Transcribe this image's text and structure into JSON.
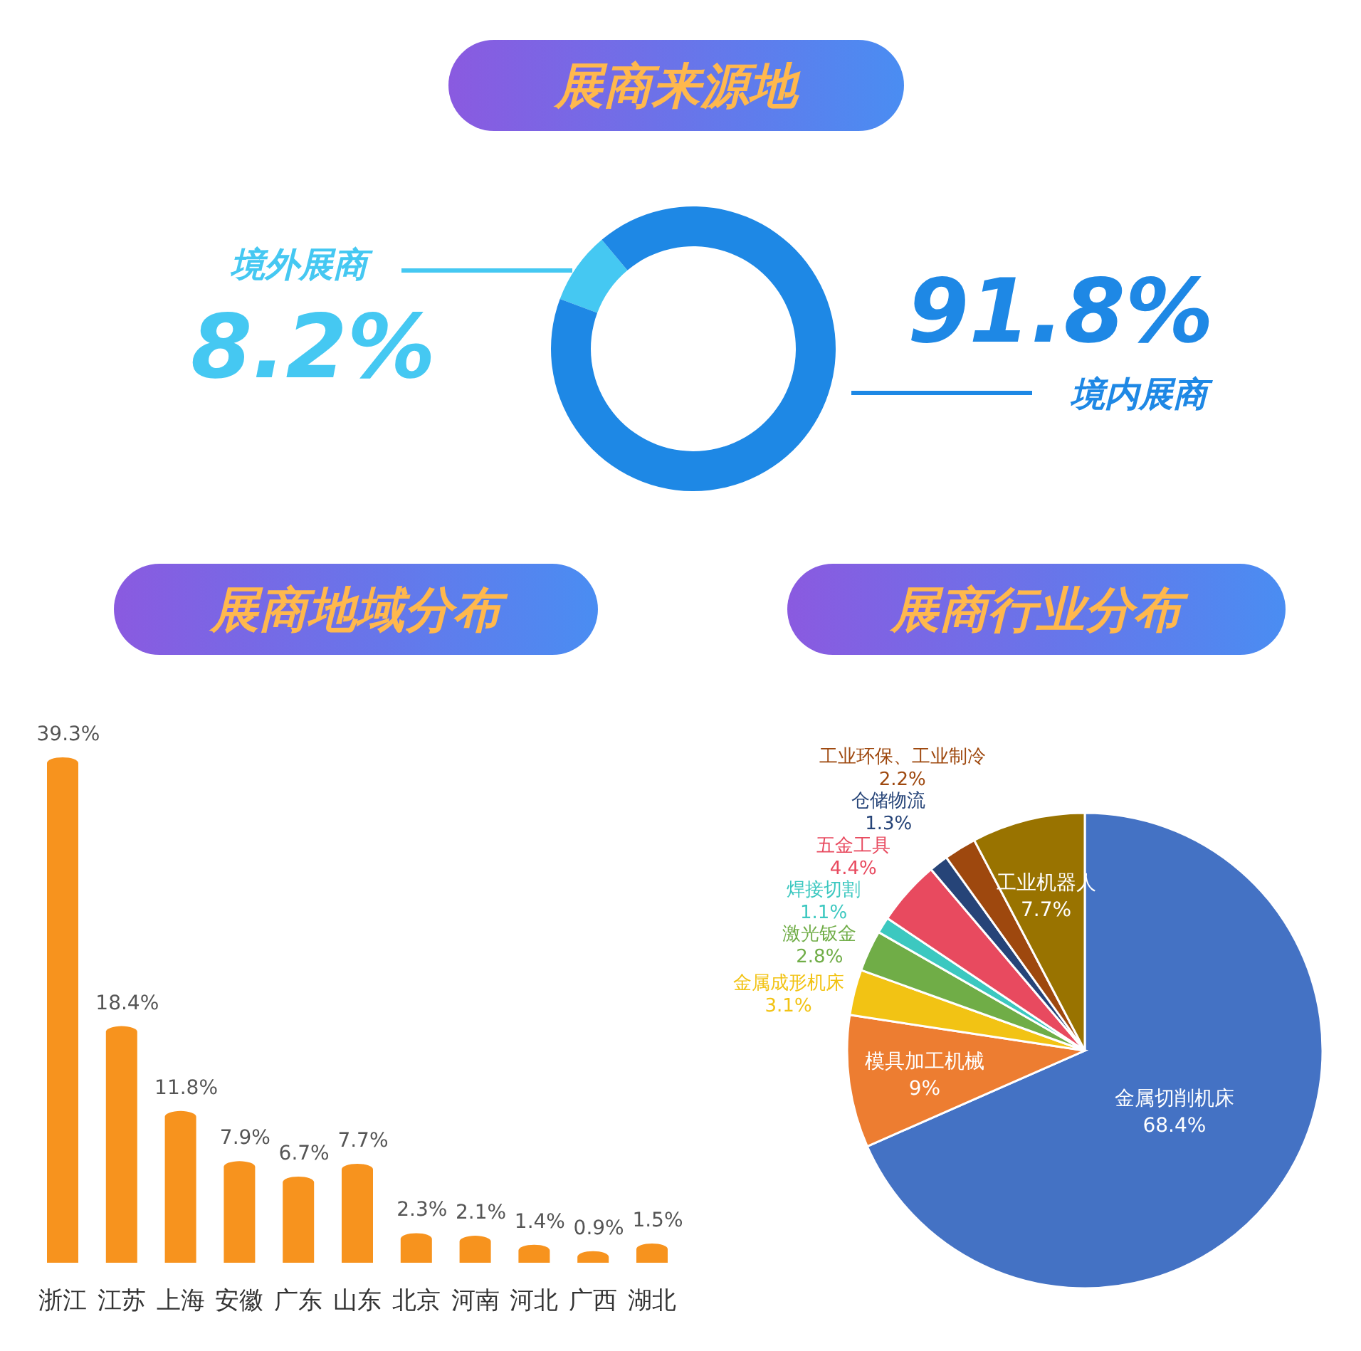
{
  "chart_data": [
    {
      "type": "donut",
      "title": "展商来源地",
      "categories": [
        "境外展商",
        "境内展商"
      ],
      "values": [
        8.2,
        91.8
      ],
      "colors": [
        "#45c8f2",
        "#1e88e5"
      ],
      "value_labels": [
        "8.2%",
        "91.8%"
      ]
    },
    {
      "type": "bar",
      "title": "展商地域分布",
      "categories": [
        "浙江",
        "江苏",
        "上海",
        "安徽",
        "广东",
        "山东",
        "北京",
        "河南",
        "河北",
        "广西",
        "湖北"
      ],
      "values": [
        39.3,
        18.4,
        11.8,
        7.9,
        6.7,
        7.7,
        2.3,
        2.1,
        1.4,
        0.9,
        1.5
      ],
      "color": "#f7931e",
      "value_labels": [
        "39.3%",
        "18.4%",
        "11.8%",
        "7.9%",
        "6.7%",
        "7.7%",
        "2.3%",
        "2.1%",
        "1.4%",
        "0.9%",
        "1.5%"
      ]
    },
    {
      "type": "pie",
      "title": "展商行业分布",
      "categories": [
        "金属切削机床",
        "模具加工机械",
        "金属成形机床",
        "激光钣金",
        "焊接切割",
        "五金工具",
        "仓储物流",
        "工业环保、工业制冷",
        "工业机器人"
      ],
      "values": [
        68.4,
        9,
        3.1,
        2.8,
        1.1,
        4.4,
        1.3,
        2.2,
        7.7
      ],
      "colors": [
        "#4472c4",
        "#ed7d31",
        "#f2c314",
        "#70ad47",
        "#3cc8c0",
        "#e84a5f",
        "#264478",
        "#9e480e",
        "#997300"
      ],
      "value_labels": [
        "68.4%",
        "9%",
        "3.1%",
        "2.8%",
        "1.1%",
        "4.4%",
        "1.3%",
        "2.2%",
        "7.7%"
      ]
    }
  ]
}
